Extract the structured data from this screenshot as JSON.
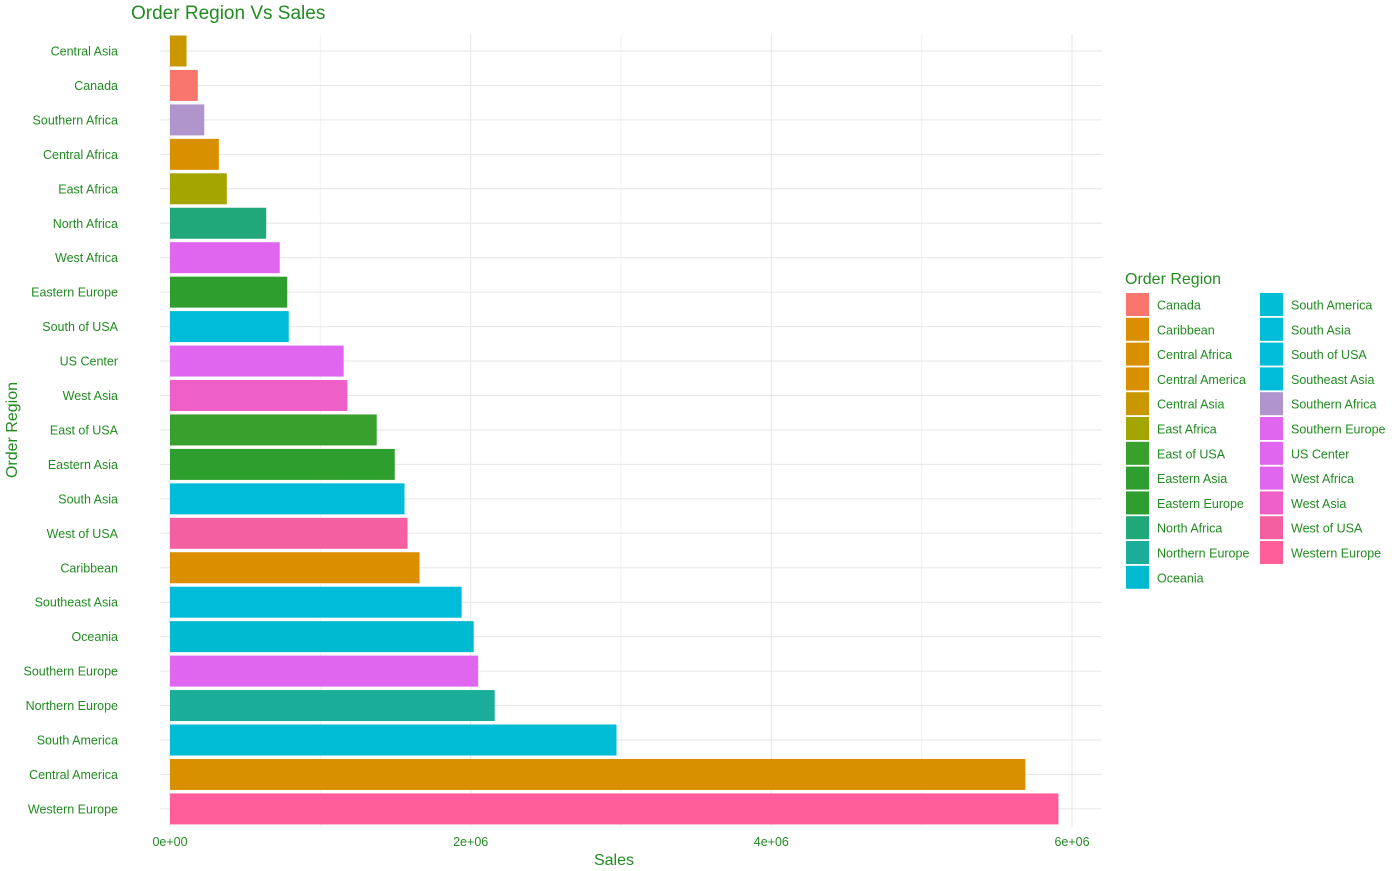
{
  "chart_data": {
    "type": "bar",
    "orientation": "horizontal",
    "title": "Order Region Vs Sales",
    "xlabel": "Sales",
    "ylabel": "Order Region",
    "xlim": [
      0,
      6100000
    ],
    "x_ticks": [
      0,
      2000000,
      4000000,
      6000000
    ],
    "x_tick_labels": [
      "0e+00",
      "2e+06",
      "4e+06",
      "6e+06"
    ],
    "grid": true,
    "legend_position": "right",
    "legend_title": "Order Region",
    "categories": [
      "Central Asia",
      "Canada",
      "Southern Africa",
      "Central Africa",
      "East Africa",
      "North Africa",
      "West Africa",
      "Eastern Europe",
      "South of  USA",
      "US Center",
      "West Asia",
      "East of USA",
      "Eastern Asia",
      "South Asia",
      "West of USA",
      "Caribbean",
      "Southeast Asia",
      "Oceania",
      "Southern Europe",
      "Northern Europe",
      "South America",
      "Central America",
      "Western Europe"
    ],
    "values": [
      110000,
      185000,
      228000,
      325000,
      378000,
      640000,
      730000,
      780000,
      790000,
      1155000,
      1180000,
      1375000,
      1495000,
      1560000,
      1580000,
      1660000,
      1940000,
      2020000,
      2050000,
      2160000,
      2970000,
      5690000,
      5910000
    ],
    "legend_entries": [
      "Canada",
      "Caribbean",
      "Central Africa",
      "Central America",
      "Central Asia",
      "East Africa",
      "East of USA",
      "Eastern Asia",
      "Eastern Europe",
      "North Africa",
      "Northern Europe",
      "Oceania",
      "South America",
      "South Asia",
      "South of  USA",
      "Southeast Asia",
      "Southern Africa",
      "Southern Europe",
      "US Center",
      "West Africa",
      "West Asia",
      "West of USA",
      "Western Europe"
    ],
    "colors": {
      "Canada": "#F8766D",
      "Caribbean": "#DB8E00",
      "Central Africa": "#D89000",
      "Central America": "#D89000",
      "Central Asia": "#C99800",
      "East Africa": "#A3A500",
      "East of USA": "#39A02E",
      "Eastern Asia": "#2E9E2E",
      "Eastern Europe": "#2E9E2E",
      "North Africa": "#20A87A",
      "Northern Europe": "#1AAE9A",
      "Oceania": "#00BAD0",
      "South America": "#00BCD5",
      "South Asia": "#00BCD8",
      "South of  USA": "#00BCD8",
      "Southeast Asia": "#00BCD8",
      "Southern Africa": "#AF95CC",
      "Southern Europe": "#E066F0",
      "US Center": "#E066F0",
      "West Africa": "#E066F0",
      "West Asia": "#EE5FC8",
      "West of USA": "#F35FA0",
      "Western Europe": "#FF5E9A"
    }
  }
}
